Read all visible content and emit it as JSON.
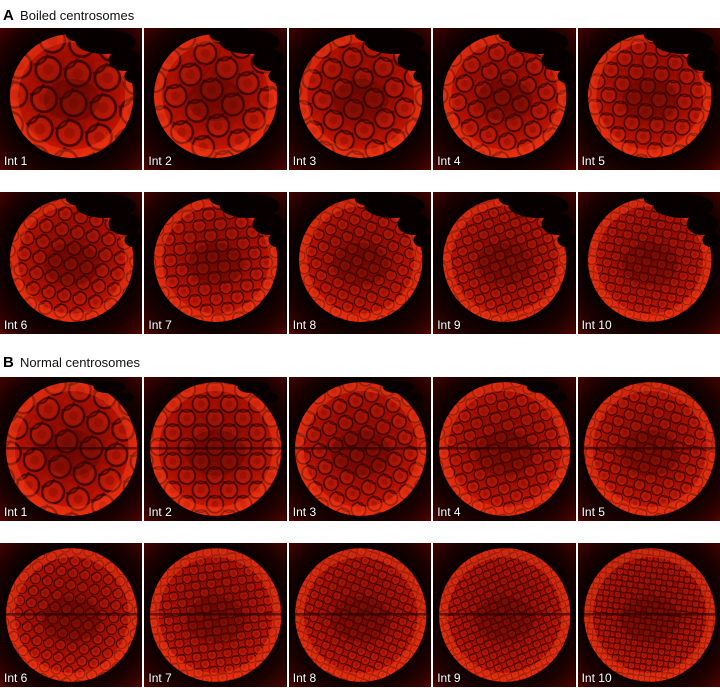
{
  "figure_title": "Centrosome fluorescence time-series figure",
  "colors": {
    "page_background": "#ffffff",
    "header_text": "#000000",
    "tile_background": "#000000",
    "corner_glow": "#6a0700",
    "embryo_base": "#960c00",
    "embryo_bright": "#f42600",
    "embryo_rim": "#ff3000",
    "cell_boundary": "#2d0000",
    "cell_fill": "#ff4628",
    "notch": "#060000",
    "label_text": "#ffffff"
  },
  "panels": [
    {
      "id": "A",
      "label": "A",
      "title": "Boiled centrosomes",
      "tiles": [
        {
          "label": "Int 1",
          "cell": 30,
          "rot": 8,
          "r": 62,
          "notch": "large",
          "seam": false
        },
        {
          "label": "Int 2",
          "cell": 26,
          "rot": 35,
          "r": 62,
          "notch": "large",
          "seam": false
        },
        {
          "label": "Int 3",
          "cell": 23,
          "rot": 62,
          "r": 62,
          "notch": "large",
          "seam": false
        },
        {
          "label": "Int 4",
          "cell": 20,
          "rot": 20,
          "r": 62,
          "notch": "large",
          "seam": false
        },
        {
          "label": "Int 5",
          "cell": 18,
          "rot": 50,
          "r": 62,
          "notch": "large",
          "seam": false
        },
        {
          "label": "Int 6",
          "cell": 16,
          "rot": 12,
          "r": 62,
          "notch": "large",
          "seam": false
        },
        {
          "label": "Int 7",
          "cell": 15,
          "rot": 40,
          "r": 62,
          "notch": "large",
          "seam": false
        },
        {
          "label": "Int 8",
          "cell": 13,
          "rot": 68,
          "r": 62,
          "notch": "large",
          "seam": false
        },
        {
          "label": "Int 9",
          "cell": 12,
          "rot": 25,
          "r": 62,
          "notch": "large",
          "seam": false
        },
        {
          "label": "Int 10",
          "cell": 11,
          "rot": 55,
          "r": 62,
          "notch": "large",
          "seam": false
        }
      ]
    },
    {
      "id": "B",
      "label": "B",
      "title": "Normal centrosomes",
      "tiles": [
        {
          "label": "Int 1",
          "cell": 26,
          "rot": 15,
          "r": 66,
          "notch": "small",
          "seam": true
        },
        {
          "label": "Int 2",
          "cell": 20,
          "rot": 45,
          "r": 66,
          "notch": "small",
          "seam": true
        },
        {
          "label": "Int 3",
          "cell": 17,
          "rot": 70,
          "r": 66,
          "notch": "small",
          "seam": true
        },
        {
          "label": "Int 4",
          "cell": 14,
          "rot": 30,
          "r": 66,
          "notch": "small",
          "seam": true
        },
        {
          "label": "Int 5",
          "cell": 13,
          "rot": 60,
          "r": 66,
          "notch": "none",
          "seam": true
        },
        {
          "label": "Int 6",
          "cell": 12,
          "rot": 10,
          "r": 66,
          "notch": "none",
          "seam": true
        },
        {
          "label": "Int 7",
          "cell": 11,
          "rot": 38,
          "r": 66,
          "notch": "none",
          "seam": true
        },
        {
          "label": "Int 8",
          "cell": 10,
          "rot": 66,
          "r": 66,
          "notch": "none",
          "seam": true
        },
        {
          "label": "Int 9",
          "cell": 9,
          "rot": 22,
          "r": 66,
          "notch": "none",
          "seam": true
        },
        {
          "label": "Int 10",
          "cell": 8,
          "rot": 52,
          "r": 66,
          "notch": "none",
          "seam": true
        }
      ]
    }
  ]
}
